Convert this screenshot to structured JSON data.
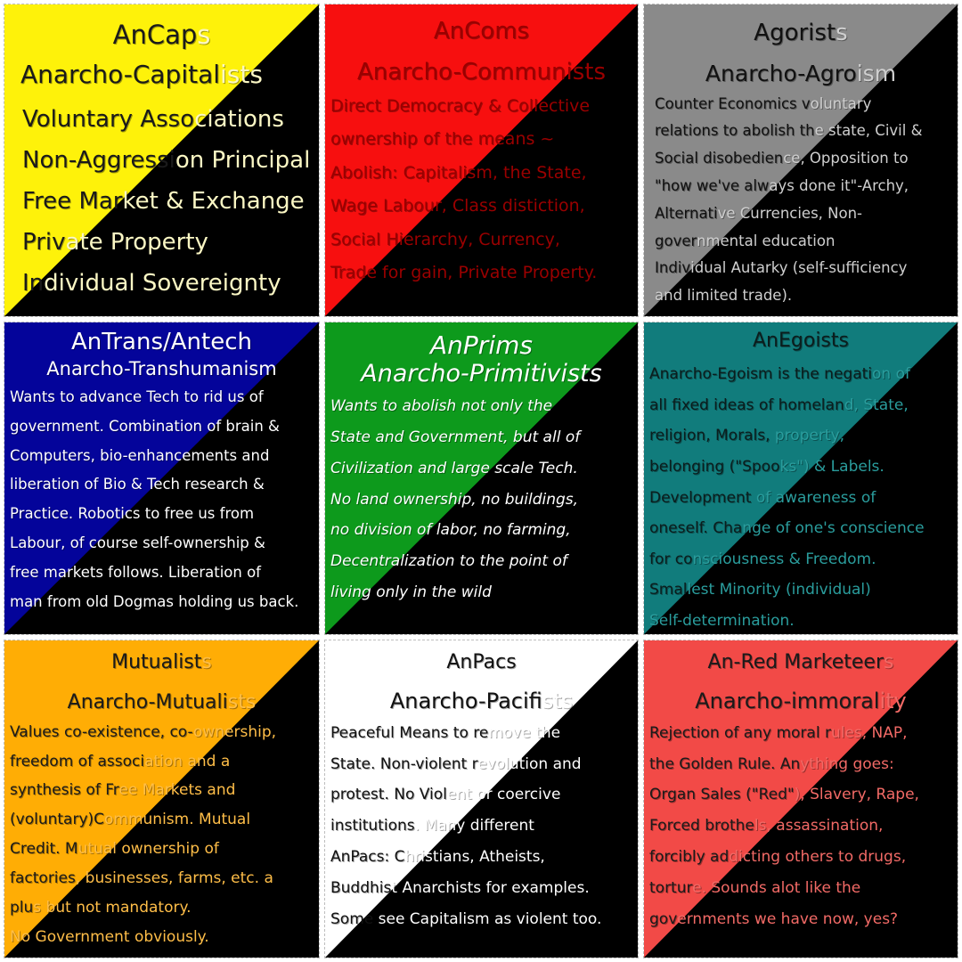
{
  "colors": {
    "yellow": "#fef20a",
    "red": "#f70f0f",
    "gray": "#8a8a8a",
    "navy": "#04049a",
    "green": "#0d9a1c",
    "teal": "#117c7c",
    "orange": "#ffad05",
    "white": "#ffffff",
    "salmon": "#f24a47",
    "black": "#000000"
  },
  "cells": {
    "ancaps": {
      "title": "AnCaps",
      "subtitle": "Anarcho-Capitalists",
      "lines": [
        "Voluntary Associations",
        "Non-Aggression Principal",
        "Free Market & Exchange",
        "Private Property",
        "Individual Sovereignty"
      ],
      "text_color": "#1a1a1a",
      "text_color_dark": "#fbf7c4",
      "bg_color": "#fef20a"
    },
    "ancoms": {
      "title": "AnComs",
      "subtitle": "Anarcho-Communists",
      "lines": [
        "Direct Democracy & Collective",
        "ownership of the means ~",
        "Abolish: Capitalism, the State,",
        "Wage Labour, Class distiction,",
        "Social Hierarchy, Currency,",
        "Trade for gain, Private Property."
      ],
      "text_color": "#9a0000",
      "bg_color": "#f70f0f"
    },
    "agorists": {
      "title": "Agorists",
      "subtitle": "Anarcho-Agroism",
      "lines": [
        "Counter Economics voluntary",
        "relations to abolish the state, Civil &",
        "Social disobedience, Opposition to",
        "\"how we've always done it\"-Archy,",
        "Alternative Currencies, Non-",
        "governmental education",
        "Individual Autarky (self-sufficiency",
        " and limited trade)."
      ],
      "text_color": "#111111",
      "text_color_dark": "#cfcfcf",
      "bg_color": "#8a8a8a"
    },
    "antrans": {
      "title": "AnTrans/Antech",
      "subtitle": "Anarcho-Transhumanism",
      "lines": [
        "Wants to advance Tech to rid us of",
        "government. Combination of brain &",
        "Computers, bio-enhancements and",
        "liberation of Bio & Tech research &",
        "Practice. Robotics to free us from",
        "Labour, of course self-ownership &",
        "free markets follows. Liberation of",
        "man from old Dogmas holding us back."
      ],
      "text_color": "#ffffff",
      "bg_color": "#04049a"
    },
    "anprims": {
      "title": "AnPrims",
      "subtitle": "Anarcho-Primitivists",
      "lines": [
        "Wants to abolish not only the",
        "State and Government, but all of",
        "Civilization and large scale Tech.",
        "No land ownership, no buildings,",
        "no division of labor, no farming,",
        "Decentralization to the point of",
        "living only in the wild"
      ],
      "text_color": "#ffffff",
      "bg_color": "#0d9a1c"
    },
    "anegoists": {
      "title": "AnEgoists",
      "lines": [
        "Anarcho-Egoism is the negation of",
        "all fixed ideas of homeland, State,",
        "religion, Morals, property,",
        "belonging (\"Spooks\") & Labels.",
        "Development of awareness of",
        "oneself. Change of one's conscience",
        "for consciousness & Freedom.",
        "Smallest Minority (individual)",
        "Self-determination."
      ],
      "text_color": "#0b1d1d",
      "text_color_dark": "#2a9d9d",
      "bg_color": "#117c7c"
    },
    "mutualists": {
      "title": "Mutualists",
      "subtitle": "Anarcho-Mutualists",
      "lines": [
        "Values co-existence, co-ownership,",
        "freedom of association and a",
        "synthesis of Free Markets and",
        "(voluntary)Communism. Mutual",
        "Credit. Mutual ownership of",
        "factories, businesses, farms, etc. a",
        "plus but not mandatory.",
        " No Government obviously."
      ],
      "text_color": "#1a1a1a",
      "text_color_dark": "#ffbe48",
      "bg_color": "#ffad05"
    },
    "anpacs": {
      "title": "AnPacs",
      "subtitle": "Anarcho-Pacifists",
      "lines": [
        "Peaceful Means to remove the",
        "State. Non-violent revolution and",
        "protest. No Violent or coercive",
        "institutions. Many different",
        "AnPacs: Christians, Atheists,",
        "Buddhist Anarchists for examples.",
        "Some see Capitalism as violent too."
      ],
      "text_color": "#111111",
      "text_color_dark": "#ffffff",
      "bg_color": "#ffffff"
    },
    "anred": {
      "title": "An-Red Marketeers",
      "subtitle": "Anarcho-immorality",
      "lines": [
        "Rejection of any moral rules, NAP,",
        "the Golden Rule. Anything goes:",
        "Organ Sales (\"Red\"), Slavery, Rape,",
        "Forced brothels, assassination,",
        "forcibly addicting others to drugs,",
        "torture. Sounds alot like the",
        "governments we have now, yes?"
      ],
      "text_color": "#1a1a1a",
      "text_color_dark": "#f26a66",
      "bg_color": "#f24a47"
    }
  }
}
